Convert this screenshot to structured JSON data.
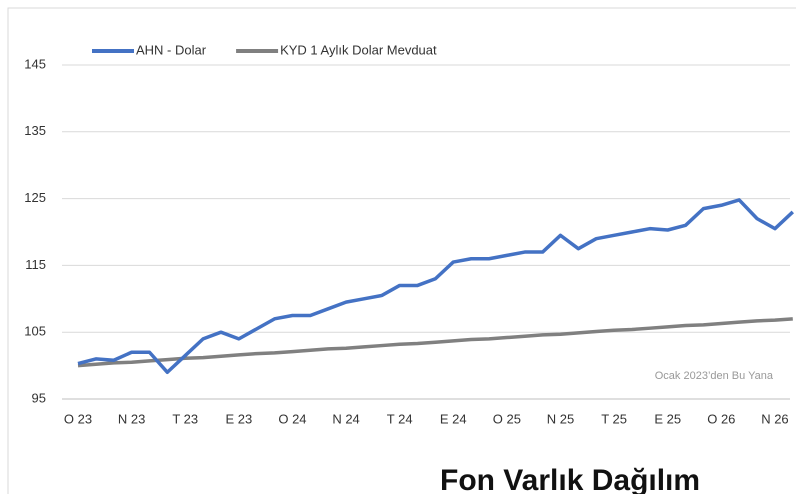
{
  "chart_data": {
    "type": "line",
    "categories": [
      "O 23",
      null,
      null,
      "N 23",
      null,
      null,
      "T 23",
      null,
      null,
      "E 23",
      null,
      null,
      "O 24",
      null,
      null,
      "N 24",
      null,
      null,
      "T 24",
      null,
      null,
      "E 24",
      null,
      null,
      "O 25",
      null,
      null,
      "N 25",
      null,
      null,
      "T 25",
      null,
      null,
      "E 25",
      null,
      null,
      "O 26",
      null,
      null,
      "N 26",
      null
    ],
    "series": [
      {
        "name": "AHN - Dolar",
        "color": "#4472c4",
        "values": [
          100.3,
          101,
          100.8,
          102,
          102,
          99,
          101.5,
          104,
          105,
          104,
          105.5,
          107,
          107.5,
          107.5,
          108.5,
          109.5,
          110,
          110.5,
          112,
          112,
          113,
          115.5,
          116,
          116,
          116.5,
          117,
          117,
          119.5,
          117.5,
          119,
          119.5,
          120,
          120.5,
          120.3,
          121,
          123.5,
          124,
          124.8,
          122,
          120.5,
          123
        ]
      },
      {
        "name": "KYD 1 Aylık Dolar Mevduat",
        "color": "#808080",
        "values": [
          100.0,
          100.2,
          100.4,
          100.5,
          100.7,
          100.9,
          101.1,
          101.2,
          101.4,
          101.6,
          101.8,
          101.9,
          102.1,
          102.3,
          102.5,
          102.6,
          102.8,
          103.0,
          103.2,
          103.3,
          103.5,
          103.7,
          103.9,
          104.0,
          104.2,
          104.4,
          104.6,
          104.7,
          104.9,
          105.1,
          105.3,
          105.4,
          105.6,
          105.8,
          106.0,
          106.1,
          106.3,
          106.5,
          106.7,
          106.8,
          107.0
        ]
      }
    ],
    "ylim": [
      95,
      150
    ],
    "yticks": [
      95,
      105,
      115,
      125,
      135,
      145
    ],
    "grid": true,
    "legend": "top-left",
    "annotation": "Ocak 2023’den Bu Yana"
  },
  "heading": "Fon Varlık Dağılım"
}
